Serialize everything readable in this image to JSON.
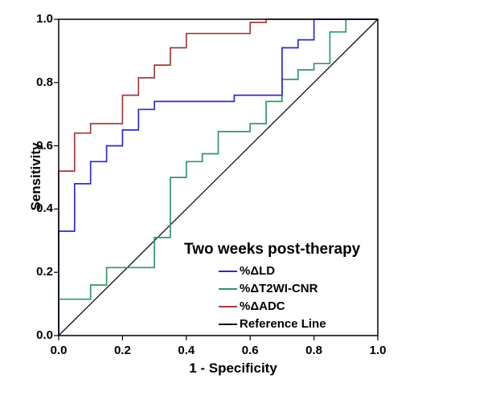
{
  "chart_data": {
    "type": "line",
    "subtype": "roc-step-curves",
    "title": "Two weeks post-therapy",
    "xlabel": "1 - Specificity",
    "ylabel": "Sensitivity",
    "xlim": [
      0.0,
      1.0
    ],
    "ylim": [
      0.0,
      1.0
    ],
    "xtick_labels": [
      "0.0",
      "0.2",
      "0.4",
      "0.6",
      "0.8",
      "1.0"
    ],
    "ytick_labels": [
      "0.0",
      "0.2",
      "0.4",
      "0.6",
      "0.8",
      "1.0"
    ],
    "grid": false,
    "legend_position": "inside-bottom-right",
    "axis_color": "#000000",
    "background_color": "#ffffff",
    "series": [
      {
        "name": "%ΔLD",
        "color": "#2b2bd5",
        "line_width": 1.7,
        "points": [
          [
            0,
            0
          ],
          [
            0,
            0.33
          ],
          [
            0.05,
            0.33
          ],
          [
            0.05,
            0.48
          ],
          [
            0.1,
            0.48
          ],
          [
            0.1,
            0.55
          ],
          [
            0.15,
            0.55
          ],
          [
            0.15,
            0.6
          ],
          [
            0.2,
            0.6
          ],
          [
            0.2,
            0.65
          ],
          [
            0.25,
            0.65
          ],
          [
            0.25,
            0.715
          ],
          [
            0.3,
            0.715
          ],
          [
            0.3,
            0.74
          ],
          [
            0.55,
            0.74
          ],
          [
            0.55,
            0.76
          ],
          [
            0.7,
            0.76
          ],
          [
            0.7,
            0.91
          ],
          [
            0.75,
            0.91
          ],
          [
            0.75,
            0.935
          ],
          [
            0.8,
            0.935
          ],
          [
            0.8,
            1
          ],
          [
            1,
            1
          ]
        ]
      },
      {
        "name": "%ΔT2WI-CNR",
        "color": "#2e9966",
        "line_width": 1.7,
        "points": [
          [
            0,
            0
          ],
          [
            0,
            0.115
          ],
          [
            0.1,
            0.115
          ],
          [
            0.1,
            0.16
          ],
          [
            0.15,
            0.16
          ],
          [
            0.15,
            0.215
          ],
          [
            0.3,
            0.215
          ],
          [
            0.3,
            0.31
          ],
          [
            0.35,
            0.31
          ],
          [
            0.35,
            0.5
          ],
          [
            0.4,
            0.5
          ],
          [
            0.4,
            0.55
          ],
          [
            0.45,
            0.55
          ],
          [
            0.45,
            0.575
          ],
          [
            0.5,
            0.575
          ],
          [
            0.5,
            0.645
          ],
          [
            0.6,
            0.645
          ],
          [
            0.6,
            0.67
          ],
          [
            0.65,
            0.67
          ],
          [
            0.65,
            0.74
          ],
          [
            0.7,
            0.74
          ],
          [
            0.7,
            0.81
          ],
          [
            0.75,
            0.81
          ],
          [
            0.75,
            0.84
          ],
          [
            0.8,
            0.84
          ],
          [
            0.8,
            0.86
          ],
          [
            0.85,
            0.86
          ],
          [
            0.85,
            0.96
          ],
          [
            0.9,
            0.96
          ],
          [
            0.9,
            1
          ],
          [
            1,
            1
          ]
        ]
      },
      {
        "name": "%ΔADC",
        "color": "#a13c3c",
        "line_width": 1.7,
        "points": [
          [
            0,
            0
          ],
          [
            0,
            0.52
          ],
          [
            0.05,
            0.52
          ],
          [
            0.05,
            0.64
          ],
          [
            0.1,
            0.64
          ],
          [
            0.1,
            0.67
          ],
          [
            0.2,
            0.67
          ],
          [
            0.2,
            0.76
          ],
          [
            0.25,
            0.76
          ],
          [
            0.25,
            0.815
          ],
          [
            0.3,
            0.815
          ],
          [
            0.3,
            0.855
          ],
          [
            0.35,
            0.855
          ],
          [
            0.35,
            0.91
          ],
          [
            0.4,
            0.91
          ],
          [
            0.4,
            0.955
          ],
          [
            0.6,
            0.955
          ],
          [
            0.6,
            0.99
          ],
          [
            0.65,
            0.99
          ],
          [
            0.65,
            1
          ],
          [
            1,
            1
          ]
        ]
      },
      {
        "name": "Reference Line",
        "color": "#111111",
        "line_width": 1.3,
        "points": [
          [
            0,
            0
          ],
          [
            1,
            1
          ]
        ]
      }
    ]
  }
}
